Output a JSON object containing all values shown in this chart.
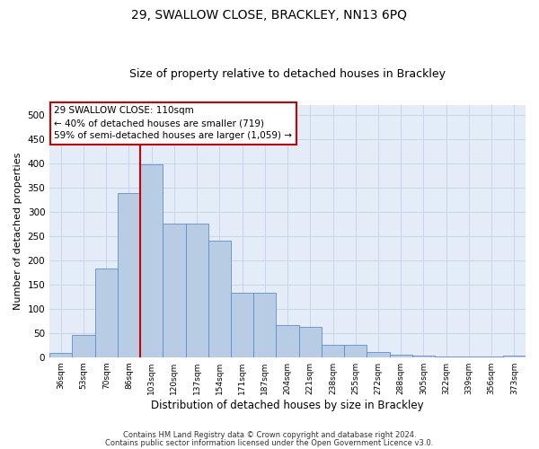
{
  "title1": "29, SWALLOW CLOSE, BRACKLEY, NN13 6PQ",
  "title2": "Size of property relative to detached houses in Brackley",
  "xlabel": "Distribution of detached houses by size in Brackley",
  "ylabel": "Number of detached properties",
  "categories": [
    "36sqm",
    "53sqm",
    "70sqm",
    "86sqm",
    "103sqm",
    "120sqm",
    "137sqm",
    "154sqm",
    "171sqm",
    "187sqm",
    "204sqm",
    "221sqm",
    "238sqm",
    "255sqm",
    "272sqm",
    "288sqm",
    "305sqm",
    "322sqm",
    "339sqm",
    "356sqm",
    "373sqm"
  ],
  "values": [
    8,
    46,
    182,
    338,
    398,
    275,
    275,
    240,
    133,
    133,
    67,
    62,
    25,
    25,
    10,
    5,
    4,
    2,
    1,
    1,
    3
  ],
  "bar_color": "#b8cce4",
  "bar_edge_color": "#5b8fd4",
  "vline_color": "#cc0000",
  "vline_x": 4.5,
  "annotation_box_text": "29 SWALLOW CLOSE: 110sqm\n← 40% of detached houses are smaller (719)\n59% of semi-detached houses are larger (1,059) →",
  "annotation_box_color": "#cc0000",
  "ylim": [
    0,
    520
  ],
  "yticks": [
    0,
    50,
    100,
    150,
    200,
    250,
    300,
    350,
    400,
    450,
    500
  ],
  "grid_color": "#c8d4e8",
  "footnote1": "Contains HM Land Registry data © Crown copyright and database right 2024.",
  "footnote2": "Contains public sector information licensed under the Open Government Licence v3.0.",
  "bg_color": "#e4ecf8",
  "title1_fontsize": 10,
  "title2_fontsize": 9,
  "xlabel_fontsize": 8.5,
  "ylabel_fontsize": 8,
  "annot_fontsize": 7.5
}
